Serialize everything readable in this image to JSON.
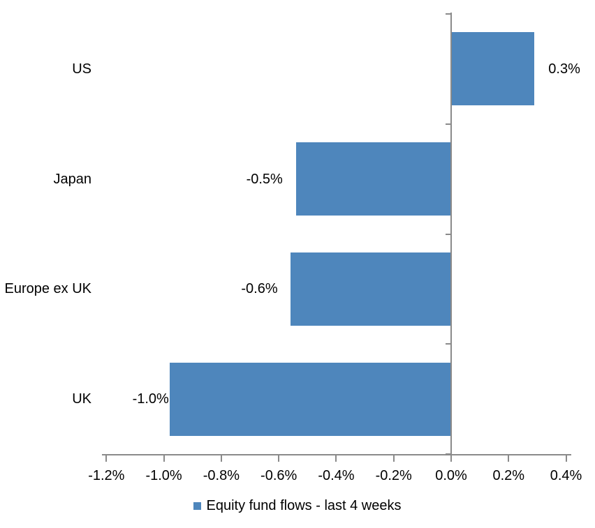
{
  "chart_data": {
    "type": "bar",
    "orientation": "horizontal",
    "title": "",
    "categories": [
      "US",
      "Japan",
      "Europe ex UK",
      "UK"
    ],
    "values": [
      0.3,
      -0.5,
      -0.6,
      -1.0
    ],
    "values_drawn_pct": [
      0.29,
      -0.54,
      -0.56,
      -0.98
    ],
    "data_labels": [
      "0.3%",
      "-0.5%",
      "-0.6%",
      "-1.0%"
    ],
    "series_name": "Equity fund flows - last 4 weeks",
    "x_tick_labels": [
      "-1.2%",
      "-1.0%",
      "-0.8%",
      "-0.6%",
      "-0.4%",
      "-0.2%",
      "0.0%",
      "0.2%",
      "0.4%"
    ],
    "x_tick_values": [
      -1.2,
      -1.0,
      -0.8,
      -0.6,
      -0.4,
      -0.2,
      0.0,
      0.2,
      0.4
    ],
    "xlim": [
      -1.2,
      0.4
    ],
    "unit": "%",
    "grid": false,
    "legend_position": "bottom",
    "colors": {
      "bar": "#4E86BC",
      "axis": "#8A8A8A",
      "text": "#000000",
      "background": "#FFFFFF"
    }
  }
}
